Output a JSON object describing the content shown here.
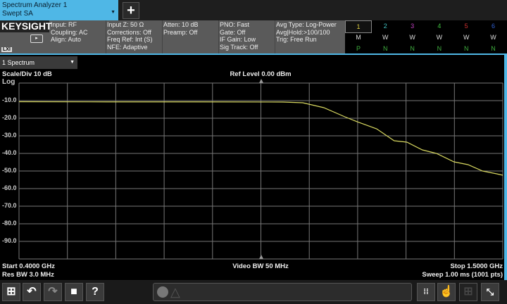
{
  "mode": {
    "title": "Spectrum Analyzer 1",
    "subtitle": "Swept SA"
  },
  "add_label": "+",
  "brand": "KEYSIGHT",
  "lxi": "LXI",
  "settings": {
    "col1": [
      "Input: RF",
      "Coupling: AC",
      "Align: Auto"
    ],
    "col2": [
      "Input Z: 50 Ω",
      "Corrections: Off",
      "Freq Ref: Int (S)",
      "NFE: Adaptive"
    ],
    "col3": [
      "Atten: 10 dB",
      "Preamp: Off"
    ],
    "col4": [
      "PNO: Fast",
      "Gate: Off",
      "IF Gain: Low",
      "Sig Track: Off"
    ],
    "col5": [
      "Avg Type: Log-Power",
      "Avg|Hold:>100/100",
      "Trig: Free Run"
    ]
  },
  "traces": [
    {
      "num": "1",
      "type": "M",
      "det": "P",
      "color": "#e0d040"
    },
    {
      "num": "2",
      "type": "W",
      "det": "N",
      "color": "#40c0c0"
    },
    {
      "num": "3",
      "type": "W",
      "det": "N",
      "color": "#c040c0"
    },
    {
      "num": "4",
      "type": "W",
      "det": "N",
      "color": "#40c040"
    },
    {
      "num": "5",
      "type": "W",
      "det": "N",
      "color": "#d03030"
    },
    {
      "num": "6",
      "type": "W",
      "det": "N",
      "color": "#3060d0"
    }
  ],
  "window_select": "1 Spectrum",
  "plot": {
    "scale": "Scale/Div 10 dB",
    "ref": "Ref Level 0.00 dBm",
    "log": "Log",
    "start": "Start 0.4000 GHz",
    "stop": "Stop 1.5000 GHz",
    "vbw": "Video BW 50 MHz",
    "rbw": "Res BW 3.0 MHz",
    "sweep": "Sweep 1.00 ms (1001 pts)"
  },
  "chart_data": {
    "type": "line",
    "xlim": [
      0.4,
      1.5
    ],
    "ylim": [
      -100,
      0
    ],
    "grid": true,
    "yticks": [
      "-10.0",
      "-20.0",
      "-30.0",
      "-40.0",
      "-50.0",
      "-60.0",
      "-70.0",
      "-80.0",
      "-90.0"
    ],
    "trace_color": "#d8d860",
    "series": [
      {
        "x": [
          0.4,
          0.6,
          0.8,
          1.0,
          1.045,
          1.093,
          1.141,
          1.173,
          1.213,
          1.253,
          1.282,
          1.317,
          1.349,
          1.389,
          1.421,
          1.454,
          1.486,
          1.5
        ],
        "y": [
          -10.6,
          -10.7,
          -10.7,
          -10.8,
          -11.2,
          -14.0,
          -19.2,
          -22.4,
          -26.0,
          -32.8,
          -33.6,
          -38.0,
          -40.0,
          -44.8,
          -46.4,
          -50.0,
          -51.6,
          -52.4
        ]
      }
    ]
  }
}
